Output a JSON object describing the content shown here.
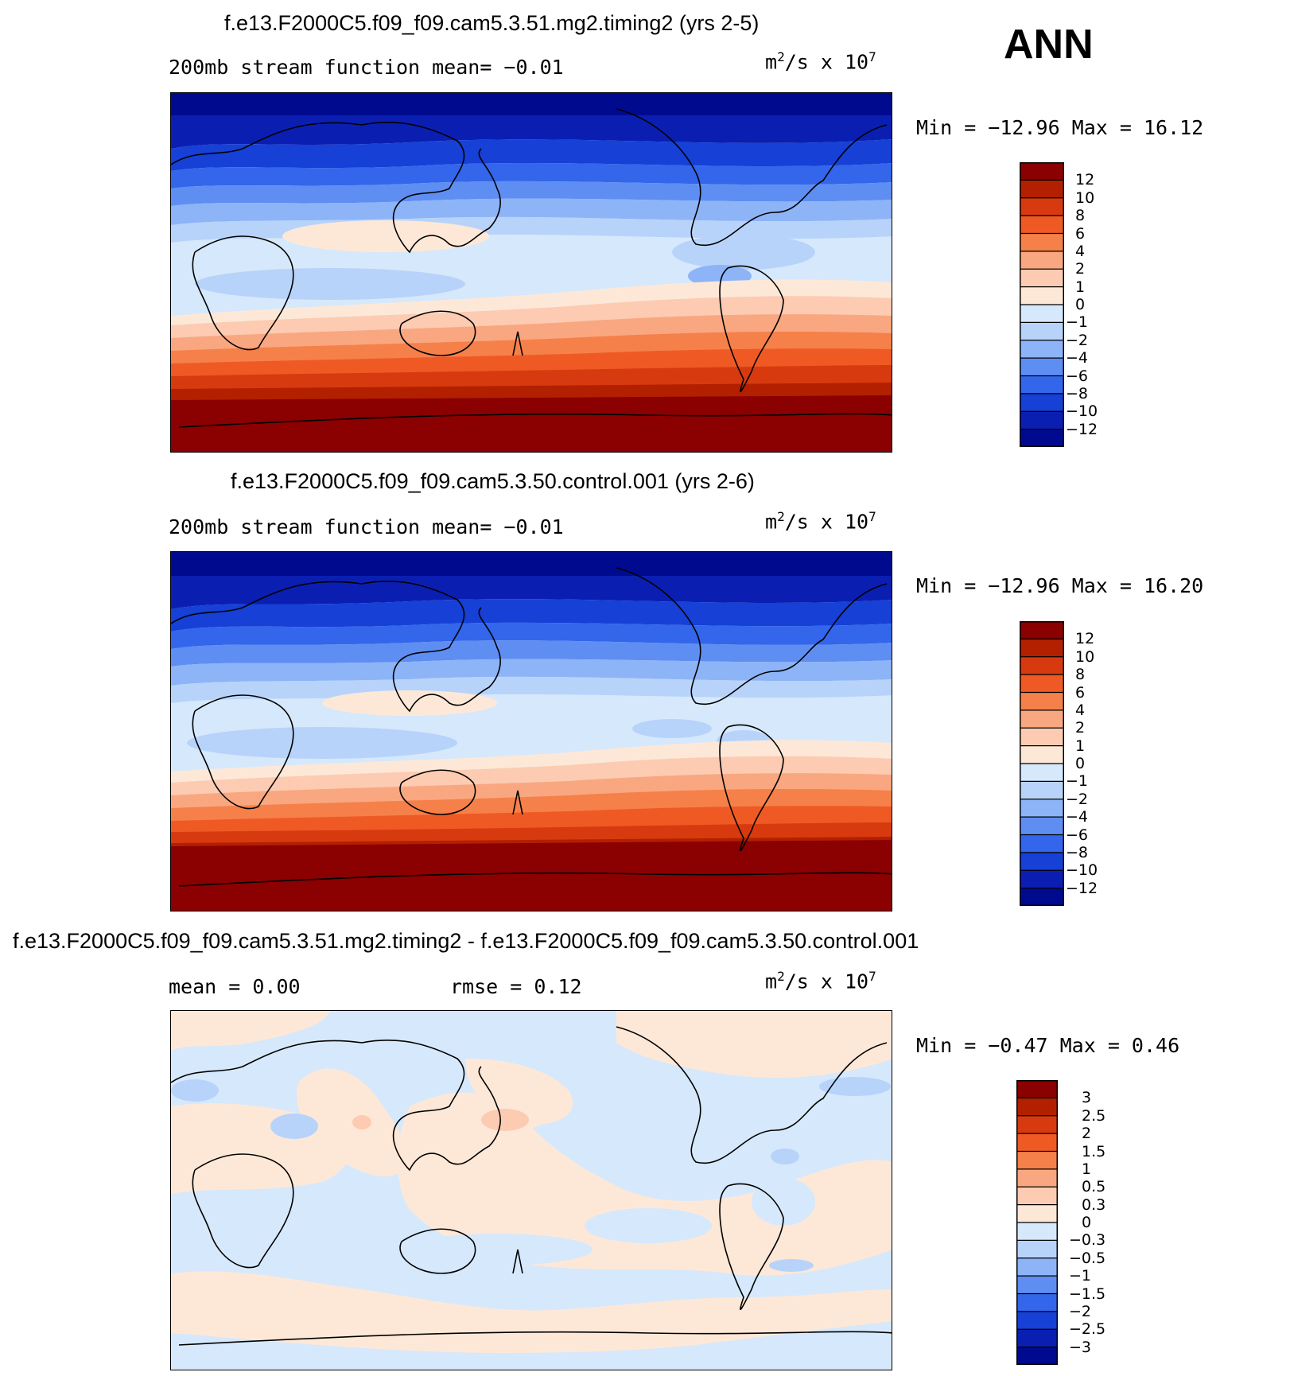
{
  "season": "ANN",
  "panels": [
    {
      "title": "f.e13.F2000C5.f09_f09.cam5.3.51.mg2.timing2 (yrs 2-5)",
      "left_label": "200mb stream function   mean=  −0.01",
      "units_base": "m",
      "units_exp": "2",
      "units_mid": "/s x 10",
      "units_exp2": "7",
      "minmax": "Min = −12.96 Max =  16.12",
      "colorbar": [
        "12",
        "10",
        "8",
        "6",
        "4",
        "2",
        "1",
        "0",
        "−1",
        "−2",
        "−4",
        "−6",
        "−8",
        "−10",
        "−12"
      ]
    },
    {
      "title": "f.e13.F2000C5.f09_f09.cam5.3.50.control.001 (yrs 2-6)",
      "left_label": "200mb stream function   mean=  −0.01",
      "units_base": "m",
      "units_exp": "2",
      "units_mid": "/s x 10",
      "units_exp2": "7",
      "minmax": "Min = −12.96 Max =  16.20",
      "colorbar": [
        "12",
        "10",
        "8",
        "6",
        "4",
        "2",
        "1",
        "0",
        "−1",
        "−2",
        "−4",
        "−6",
        "−8",
        "−10",
        "−12"
      ]
    },
    {
      "title": "f.e13.F2000C5.f09_f09.cam5.3.51.mg2.timing2 - f.e13.F2000C5.f09_f09.cam5.3.50.control.001",
      "left_label": "mean =   0.00",
      "mid_label": "rmse =   0.12",
      "units_base": "m",
      "units_exp": "2",
      "units_mid": "/s x 10",
      "units_exp2": "7",
      "minmax": "Min =  −0.47 Max =   0.46",
      "colorbar": [
        "3",
        "2.5",
        "2",
        "1.5",
        "1",
        "0.5",
        "0.3",
        "0",
        "−0.3",
        "−0.5",
        "−1",
        "−1.5",
        "−2",
        "−2.5",
        "−3"
      ]
    }
  ],
  "colors": {
    "diverging": [
      "#8b0000",
      "#b22000",
      "#d83a10",
      "#ef5a24",
      "#f6804a",
      "#f9a780",
      "#fccbb2",
      "#fde8d8",
      "#d6e8fb",
      "#b8d3fa",
      "#8db4f7",
      "#5f8ef2",
      "#3366ea",
      "#1640d6",
      "#0a1fb2",
      "#000a8f"
    ]
  }
}
